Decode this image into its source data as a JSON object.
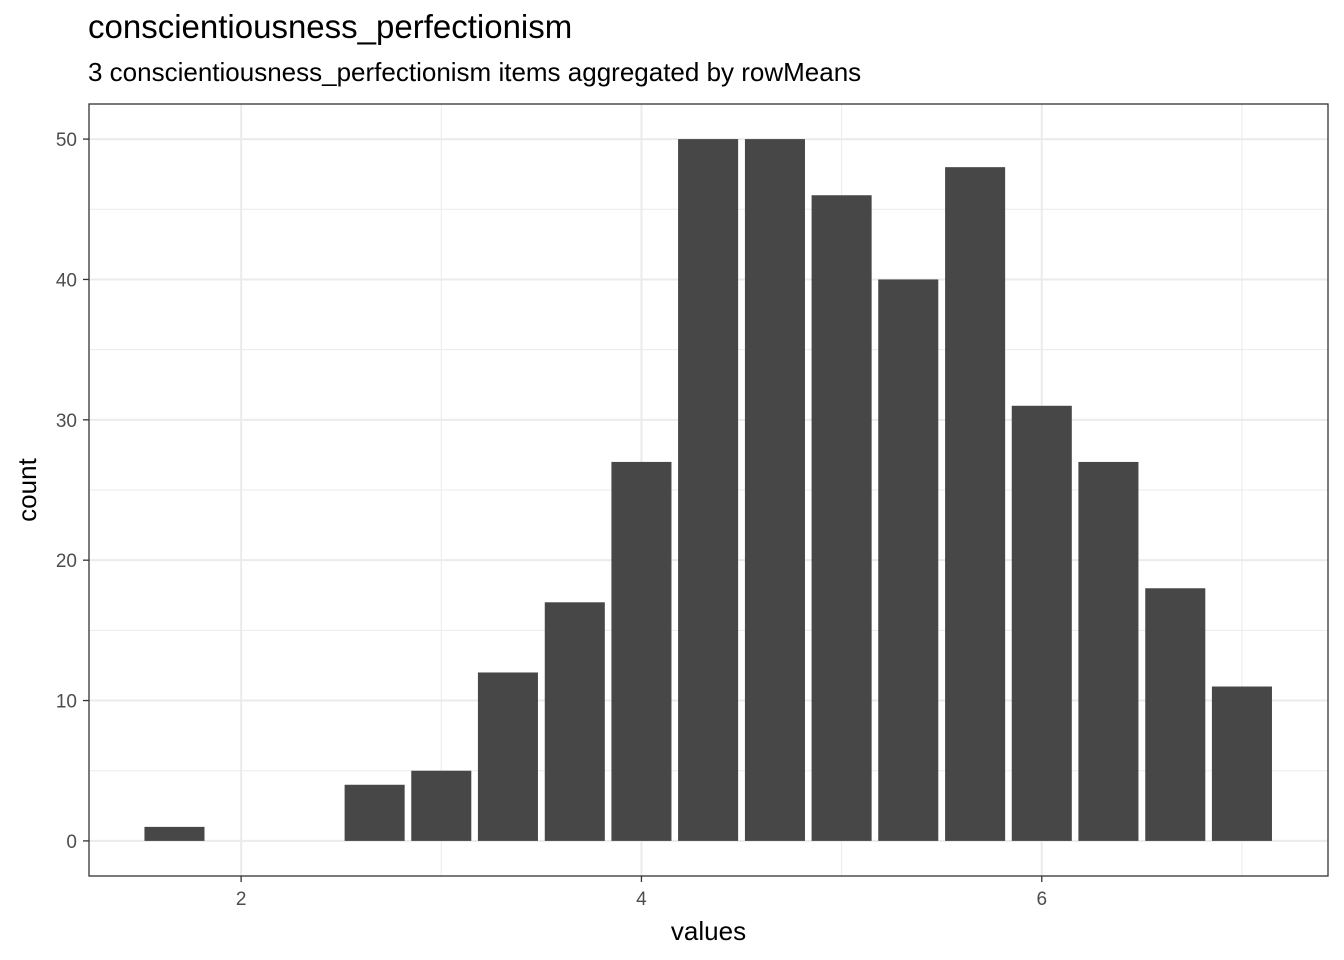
{
  "chart_data": {
    "type": "bar",
    "title": "conscientiousness_perfectionism",
    "subtitle": "3 conscientiousness_perfectionism items aggregated by rowMeans",
    "xlabel": "values",
    "ylabel": "count",
    "x": [
      1.667,
      2.0,
      2.333,
      2.667,
      3.0,
      3.333,
      3.667,
      4.0,
      4.333,
      4.667,
      5.0,
      5.333,
      5.667,
      6.0,
      6.333,
      6.667,
      7.0
    ],
    "values": [
      1,
      0,
      0,
      4,
      5,
      12,
      17,
      27,
      50,
      50,
      46,
      40,
      48,
      31,
      27,
      18,
      11
    ],
    "xlim": [
      1.24,
      7.43
    ],
    "ylim": [
      -2.5,
      52.5
    ],
    "x_ticks": [
      2,
      4,
      6
    ],
    "y_ticks": [
      0,
      10,
      20,
      30,
      40,
      50
    ],
    "x_tick_labels": [
      "2",
      "4",
      "6"
    ],
    "y_tick_labels": [
      "0",
      "10",
      "20",
      "30",
      "40",
      "50"
    ],
    "bar_color": "#474747",
    "grid": true,
    "background": "#ffffff",
    "grid_color": "#ebebeb"
  }
}
